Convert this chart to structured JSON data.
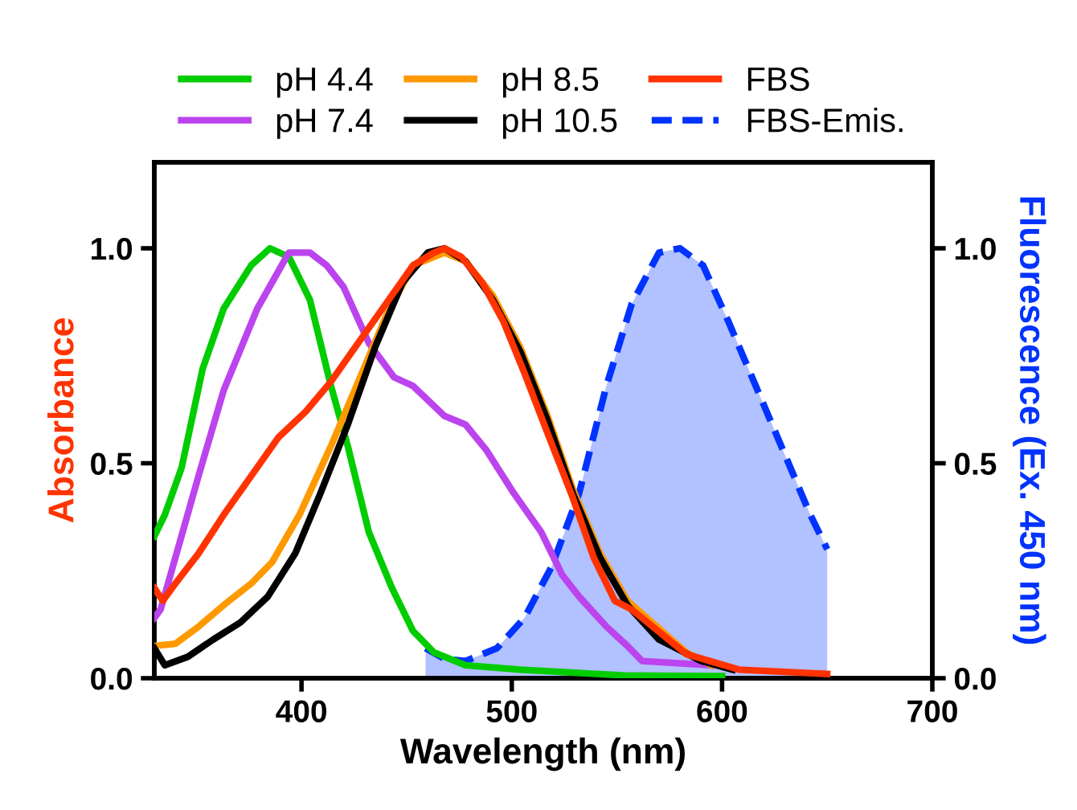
{
  "chart_data": {
    "type": "line",
    "xlabel": "Wavelength (nm)",
    "ylabel": "Absorbance",
    "y2label": "Fluorescence (Ex. 450 nm)",
    "xlim": [
      330,
      700
    ],
    "xticks": [
      400,
      500,
      600,
      700
    ],
    "ylim": [
      0,
      1.2
    ],
    "yticks": [
      {
        "value": 0,
        "label": "0.0"
      },
      0.5,
      {
        "value": 1,
        "label": "1.0"
      }
    ],
    "y2lim": [
      0,
      1.2
    ],
    "y2ticks": [
      {
        "value": 0,
        "label": "0.0"
      },
      0.5,
      {
        "value": 1,
        "label": "1.0"
      }
    ],
    "legend": "top",
    "grid": false,
    "line_style": "solid",
    "series": [
      {
        "name": "pH 4.4",
        "color": "#00cc00",
        "x": [
          330,
          335,
          343,
          353,
          363,
          376,
          385,
          394,
          404,
          414,
          422,
          432,
          443,
          453,
          463,
          478,
          504,
          555,
          600
        ],
        "values": [
          0.33,
          0.38,
          0.49,
          0.72,
          0.86,
          0.96,
          1.0,
          0.98,
          0.88,
          0.68,
          0.54,
          0.34,
          0.21,
          0.11,
          0.06,
          0.03,
          0.02,
          0.006,
          0.005
        ]
      },
      {
        "name": "pH 7.4",
        "color": "#bb44ee",
        "x": [
          330,
          333,
          340,
          351,
          363,
          379,
          394,
          404,
          412,
          420,
          432,
          444,
          453,
          468,
          478,
          488,
          501,
          514,
          524,
          532,
          545,
          555,
          562,
          595
        ],
        "values": [
          0.14,
          0.16,
          0.28,
          0.47,
          0.67,
          0.86,
          0.99,
          0.99,
          0.96,
          0.91,
          0.78,
          0.7,
          0.68,
          0.61,
          0.59,
          0.53,
          0.43,
          0.34,
          0.24,
          0.19,
          0.12,
          0.075,
          0.04,
          0.03
        ]
      },
      {
        "name": "pH 8.5",
        "color": "#ff9900",
        "x": [
          330,
          340,
          351,
          363,
          376,
          386,
          399,
          414,
          427,
          440,
          453,
          468,
          478,
          491,
          504,
          517,
          529,
          542,
          555,
          583,
          595
        ],
        "values": [
          0.075,
          0.08,
          0.12,
          0.17,
          0.22,
          0.27,
          0.38,
          0.54,
          0.69,
          0.84,
          0.96,
          0.99,
          0.97,
          0.89,
          0.77,
          0.61,
          0.44,
          0.29,
          0.18,
          0.06,
          0.03
        ]
      },
      {
        "name": "pH 10.5",
        "color": "#000000",
        "x": [
          330,
          335,
          346,
          358,
          371,
          384,
          397,
          409,
          422,
          435,
          448,
          460,
          468,
          478,
          491,
          504,
          517,
          529,
          542,
          555,
          570,
          590,
          605
        ],
        "values": [
          0.07,
          0.03,
          0.05,
          0.09,
          0.13,
          0.19,
          0.29,
          0.43,
          0.59,
          0.77,
          0.92,
          0.99,
          1.0,
          0.97,
          0.88,
          0.76,
          0.6,
          0.43,
          0.28,
          0.17,
          0.09,
          0.04,
          0.02
        ]
      },
      {
        "name": "FBS",
        "color": "#ff3300",
        "x": [
          330,
          334,
          340,
          351,
          363,
          376,
          389,
          402,
          414,
          427,
          440,
          453,
          463,
          468,
          476,
          486,
          496,
          506,
          517,
          529,
          539,
          549,
          557,
          583,
          608,
          650
        ],
        "values": [
          0.21,
          0.18,
          0.22,
          0.29,
          0.38,
          0.47,
          0.56,
          0.62,
          0.69,
          0.78,
          0.87,
          0.96,
          0.99,
          1.0,
          0.98,
          0.92,
          0.83,
          0.71,
          0.57,
          0.42,
          0.28,
          0.18,
          0.16,
          0.056,
          0.02,
          0.01
        ]
      },
      {
        "name": "FBS-Emis.",
        "type": "area",
        "axis": "y2",
        "line_style": "dashed",
        "color": "#0033ff",
        "x": [
          459,
          468,
          478,
          493,
          506,
          519,
          532,
          545,
          557,
          570,
          580,
          591,
          603,
          616,
          629,
          642,
          650
        ],
        "values": [
          0.07,
          0.045,
          0.04,
          0.07,
          0.14,
          0.26,
          0.43,
          0.68,
          0.87,
          0.99,
          1.0,
          0.96,
          0.83,
          0.68,
          0.53,
          0.38,
          0.3
        ]
      }
    ]
  }
}
